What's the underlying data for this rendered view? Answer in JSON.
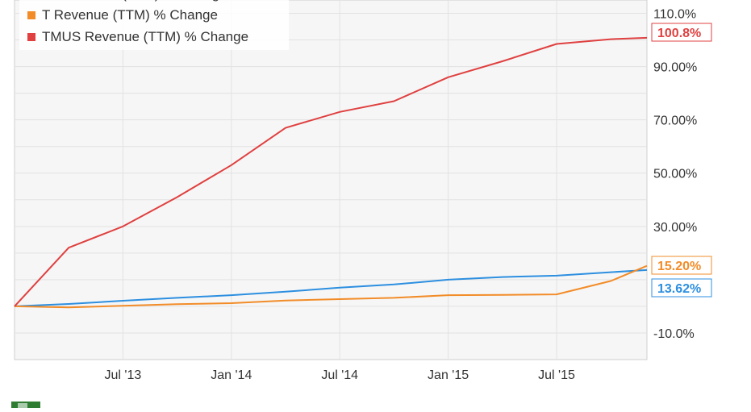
{
  "chart_data": {
    "type": "line",
    "legend": {
      "placement": "top-left",
      "partially_visible_entry": "VZ Revenue (TTM) % Change"
    },
    "grid": true,
    "x_tick_labels": [
      "Jul '13",
      "Jan '14",
      "Jul '14",
      "Jan '15",
      "Jul '15"
    ],
    "x_range": [
      "2013-01",
      "2015-12"
    ],
    "x": [
      "2013-01",
      "2013-04",
      "2013-07",
      "2013-10",
      "2014-01",
      "2014-04",
      "2014-07",
      "2014-10",
      "2015-01",
      "2015-04",
      "2015-07",
      "2015-10",
      "2015-12"
    ],
    "y_range": [
      -20,
      115
    ],
    "y_tick_labels": [
      "-10.0%",
      "30.00%",
      "50.00%",
      "70.00%",
      "90.00%",
      "110.0%"
    ],
    "y_tick_values": [
      -10,
      30,
      50,
      70,
      90,
      110
    ],
    "series": [
      {
        "name": "VZ Revenue (TTM) % Change",
        "color": "#2d8fe0",
        "values": [
          0,
          0.9,
          2.1,
          3.2,
          4.2,
          5.5,
          7,
          8.2,
          10,
          11,
          11.5,
          12.8,
          13.62
        ],
        "end_label": "13.62%",
        "end_label_color": "#2d8fe0"
      },
      {
        "name": "T Revenue (TTM) % Change",
        "color": "#f28c28",
        "values": [
          0,
          -0.4,
          0.2,
          0.8,
          1.2,
          2.2,
          2.7,
          3.2,
          4.2,
          4.3,
          4.5,
          9.5,
          15.2
        ],
        "end_label": "15.20%",
        "end_label_color": "#f28c28"
      },
      {
        "name": "TMUS Revenue (TTM) % Change",
        "color": "#e04040",
        "values": [
          0,
          22,
          30,
          41,
          53,
          67,
          73,
          77,
          86,
          92,
          98.5,
          100.3,
          100.8
        ],
        "end_label": "100.8%",
        "end_label_color": "#e04040"
      }
    ]
  }
}
